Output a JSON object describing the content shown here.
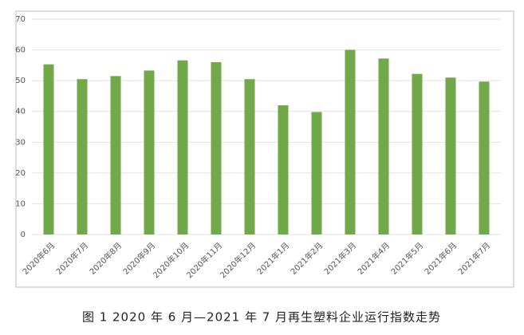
{
  "chart_data": {
    "type": "bar",
    "title": "图 1  2020 年 6 月—2021 年 7 月再生塑料企业运行指数走势",
    "categories": [
      "2020年6月",
      "2020年7月",
      "2020年8月",
      "2020年9月",
      "2020年10月",
      "2020年11月",
      "2020年12月",
      "2021年1月",
      "2021年2月",
      "2021年3月",
      "2021年4月",
      "2021年5月",
      "2021年6月",
      "2021年7月"
    ],
    "values": [
      55.3,
      50.5,
      51.5,
      53.3,
      56.6,
      56.0,
      50.5,
      42.0,
      39.8,
      60.0,
      57.2,
      52.2,
      51.0,
      49.7
    ],
    "color": "#70a84a",
    "ylim": [
      0,
      70
    ],
    "yticks": [
      0,
      10,
      20,
      30,
      40,
      50,
      60,
      70
    ],
    "grid": true
  }
}
